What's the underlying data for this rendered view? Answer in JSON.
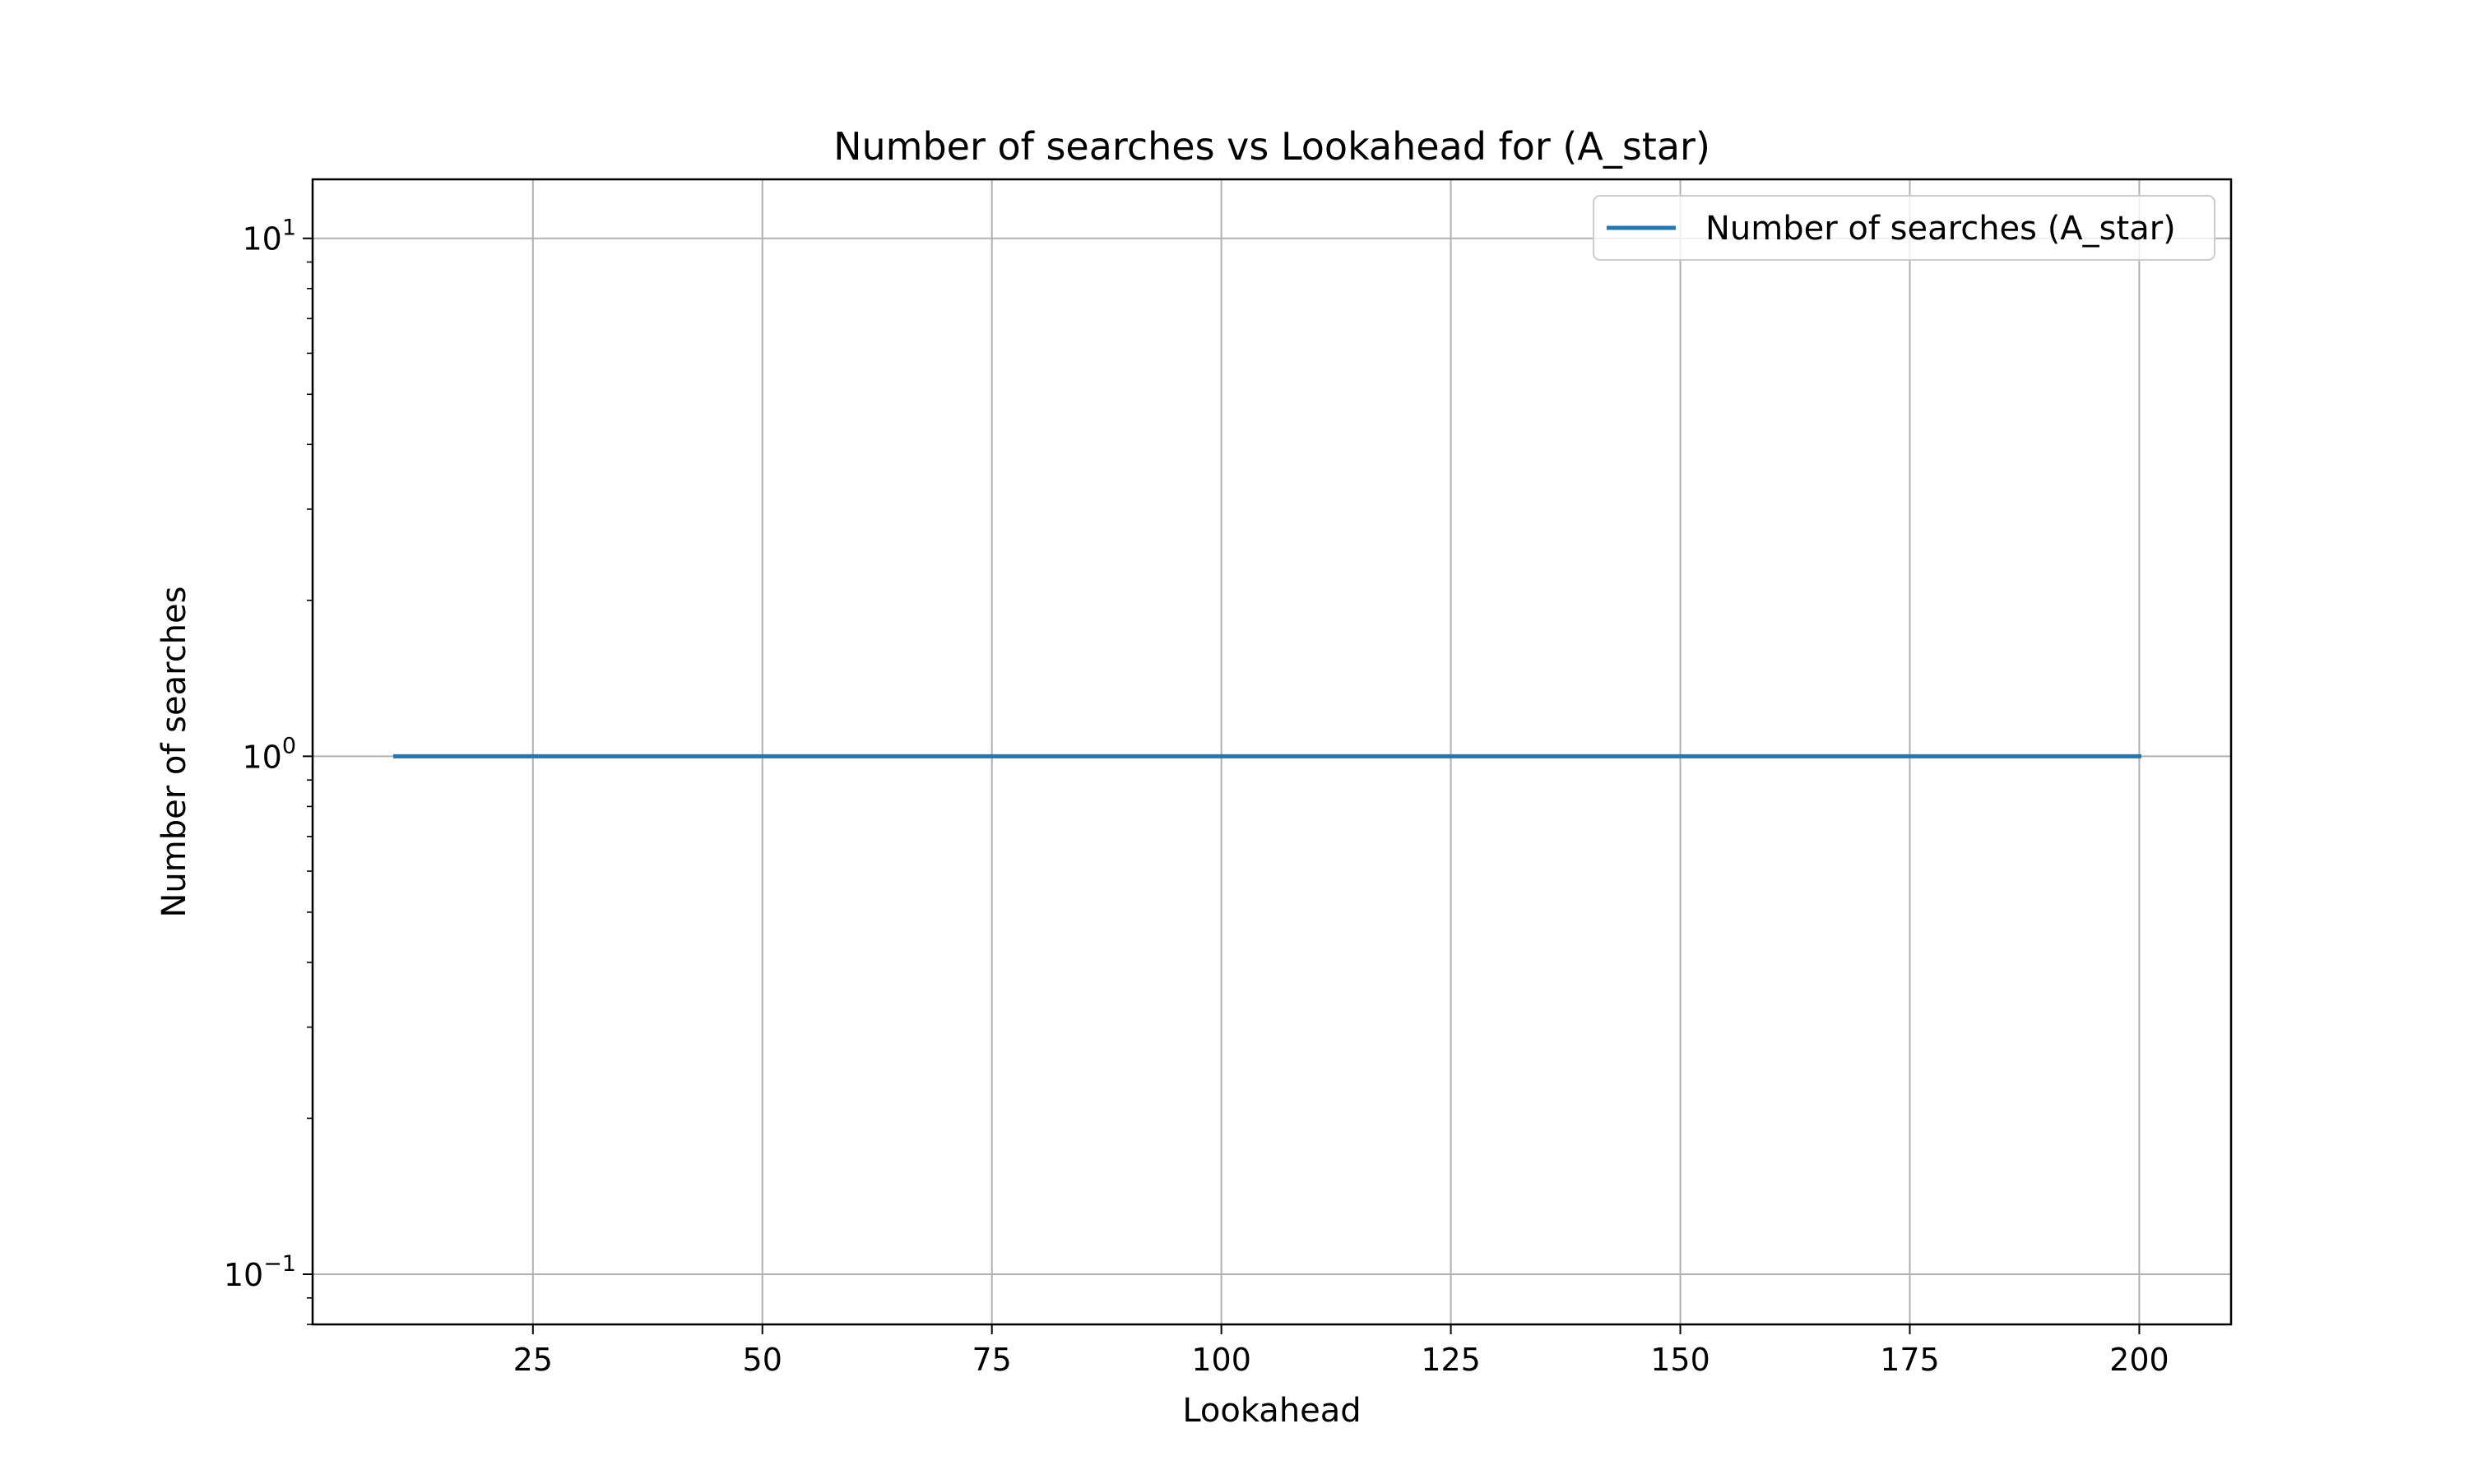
{
  "chart_data": {
    "type": "line",
    "title": "Number of searches vs Lookahead for  (A_star)",
    "xlabel": "Lookahead",
    "ylabel": "Number of searches",
    "xlim": [
      1,
      210
    ],
    "ylim": [
      0.08,
      13
    ],
    "yscale": "log",
    "grid": true,
    "legend_position": "upper right",
    "x_ticks": [
      25,
      50,
      75,
      100,
      125,
      150,
      175,
      200
    ],
    "x_tick_labels": [
      "25",
      "50",
      "75",
      "100",
      "125",
      "150",
      "175",
      "200"
    ],
    "y_ticks": [
      {
        "value": 0.1,
        "base": "10",
        "exp": "−1"
      },
      {
        "value": 1,
        "base": "10",
        "exp": "0"
      },
      {
        "value": 10,
        "base": "10",
        "exp": "1"
      }
    ],
    "series": [
      {
        "name": "Number of searches (A_star)",
        "color": "#1f77b4",
        "x": [
          10,
          200
        ],
        "y": [
          1,
          1
        ]
      }
    ]
  }
}
